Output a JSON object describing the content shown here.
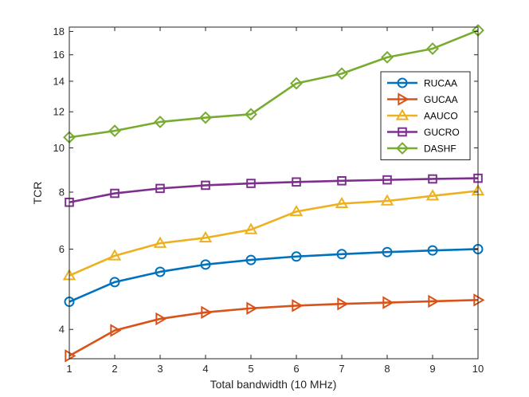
{
  "chart_data": {
    "type": "line",
    "title": "",
    "xlabel": "Total bandwidth (10 MHz)",
    "ylabel": "TCR",
    "x": [
      1,
      2,
      3,
      4,
      5,
      6,
      7,
      8,
      9,
      10
    ],
    "xlim": [
      1,
      10
    ],
    "ylim": [
      3.45,
      18.4
    ],
    "yscale": "log",
    "xticks": [
      "1",
      "2",
      "3",
      "4",
      "5",
      "6",
      "7",
      "8",
      "9",
      "10"
    ],
    "yticks": [
      {
        "value": 4,
        "label": "4"
      },
      {
        "value": 6,
        "label": "6"
      },
      {
        "value": 8,
        "label": "8"
      },
      {
        "value": 10,
        "label": "10"
      },
      {
        "value": 12,
        "label": "12"
      },
      {
        "value": 14,
        "label": "14"
      },
      {
        "value": 16,
        "label": "16"
      },
      {
        "value": 18,
        "label": "18"
      }
    ],
    "grid": false,
    "legend_position": "upper-right",
    "series": [
      {
        "name": "RUCAA",
        "color": "#0072BD",
        "marker": "circle",
        "values": [
          4.6,
          5.08,
          5.35,
          5.55,
          5.68,
          5.78,
          5.85,
          5.91,
          5.96,
          6.0
        ]
      },
      {
        "name": "GUCAA",
        "color": "#D95319",
        "marker": "triangle-right",
        "values": [
          3.5,
          3.98,
          4.22,
          4.36,
          4.45,
          4.51,
          4.55,
          4.58,
          4.61,
          4.64
        ]
      },
      {
        "name": "AAUCO",
        "color": "#EDB120",
        "marker": "triangle-up",
        "values": [
          5.25,
          5.8,
          6.18,
          6.35,
          6.62,
          7.25,
          7.55,
          7.65,
          7.85,
          8.05
        ]
      },
      {
        "name": "GUCRO",
        "color": "#7E2F8E",
        "marker": "square",
        "values": [
          7.6,
          7.95,
          8.15,
          8.28,
          8.36,
          8.42,
          8.47,
          8.51,
          8.55,
          8.58
        ]
      },
      {
        "name": "DASHF",
        "color": "#77AC30",
        "marker": "diamond",
        "values": [
          10.55,
          10.9,
          11.4,
          11.65,
          11.85,
          13.85,
          14.55,
          15.8,
          16.5,
          18.1
        ]
      }
    ]
  }
}
